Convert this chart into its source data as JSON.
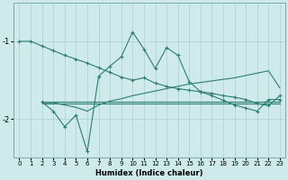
{
  "xlabel": "Humidex (Indice chaleur)",
  "bg_color": "#ceeaea",
  "line_color": "#2e7d72",
  "grid_color": "#aecece",
  "ylim": [
    -2.5,
    -0.5
  ],
  "xlim": [
    -0.5,
    23.5
  ],
  "yticks": [
    -2,
    -1
  ],
  "ytick_labels": [
    "-2",
    "-1"
  ],
  "xticks": [
    0,
    1,
    2,
    3,
    4,
    5,
    6,
    7,
    8,
    9,
    10,
    11,
    12,
    13,
    14,
    15,
    16,
    17,
    18,
    19,
    20,
    21,
    22,
    23
  ],
  "series": [
    {
      "x": [
        0,
        1,
        2,
        3,
        4,
        5,
        6,
        7,
        8,
        9,
        10,
        11,
        12,
        13,
        14,
        15,
        16,
        17,
        18,
        19,
        20,
        21,
        22,
        23
      ],
      "y": [
        -1.0,
        -1.0,
        -1.06,
        -1.12,
        -1.18,
        -1.23,
        -1.28,
        -1.34,
        -1.4,
        -1.46,
        -1.5,
        -1.47,
        -1.54,
        -1.58,
        -1.61,
        -1.63,
        -1.65,
        -1.67,
        -1.7,
        -1.72,
        -1.75,
        -1.8,
        -1.83,
        -1.7
      ],
      "marker": true
    },
    {
      "x": [
        2,
        3,
        4,
        5,
        6,
        7,
        8,
        9,
        10,
        11,
        12,
        13,
        14,
        15,
        16,
        17,
        18,
        19,
        20,
        21,
        22,
        23
      ],
      "y": [
        -1.78,
        -1.78,
        -1.78,
        -1.78,
        -1.78,
        -1.78,
        -1.78,
        -1.78,
        -1.78,
        -1.78,
        -1.78,
        -1.78,
        -1.78,
        -1.78,
        -1.78,
        -1.78,
        -1.78,
        -1.78,
        -1.78,
        -1.78,
        -1.78,
        -1.78
      ],
      "marker": false
    },
    {
      "x": [
        2,
        3,
        4,
        5,
        6,
        7,
        8,
        9,
        10,
        11,
        12,
        13,
        14,
        15,
        16,
        17,
        18,
        19,
        20,
        21,
        22,
        23
      ],
      "y": [
        -1.8,
        -1.8,
        -1.8,
        -1.8,
        -1.8,
        -1.8,
        -1.8,
        -1.8,
        -1.8,
        -1.8,
        -1.8,
        -1.8,
        -1.8,
        -1.8,
        -1.8,
        -1.8,
        -1.8,
        -1.8,
        -1.8,
        -1.8,
        -1.8,
        -1.8
      ],
      "marker": false
    },
    {
      "x": [
        2,
        3,
        4,
        5,
        6,
        7,
        8,
        9,
        10,
        11,
        12,
        13,
        14,
        15,
        16,
        17,
        18,
        19,
        20,
        21,
        22,
        23
      ],
      "y": [
        -1.79,
        -1.79,
        -1.82,
        -1.85,
        -1.9,
        -1.82,
        -1.77,
        -1.74,
        -1.7,
        -1.67,
        -1.64,
        -1.61,
        -1.58,
        -1.55,
        -1.53,
        -1.51,
        -1.49,
        -1.47,
        -1.44,
        -1.41,
        -1.38,
        -1.6
      ],
      "marker": false
    },
    {
      "x": [
        2,
        3,
        4,
        5,
        6,
        7,
        8,
        9,
        10,
        11,
        12,
        13,
        14,
        15,
        16,
        17,
        18,
        19,
        20,
        21,
        22,
        23
      ],
      "y": [
        -1.78,
        -1.9,
        -2.1,
        -1.95,
        -2.42,
        -1.45,
        -1.32,
        -1.2,
        -0.88,
        -1.1,
        -1.35,
        -1.08,
        -1.18,
        -1.52,
        -1.65,
        -1.7,
        -1.76,
        -1.82,
        -1.86,
        -1.9,
        -1.75,
        -1.75
      ],
      "marker": true
    }
  ]
}
